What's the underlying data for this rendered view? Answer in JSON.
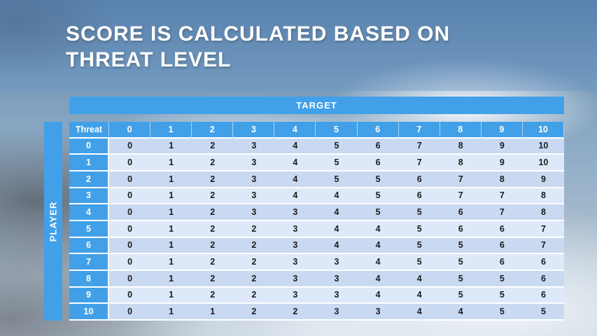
{
  "slide": {
    "title_line1": "SCORE IS CALCULATED BASED ON",
    "title_line2": "THREAT LEVEL"
  },
  "table": {
    "target_label": "TARGET",
    "player_label": "PLAYER",
    "corner_label": "Threat",
    "column_headers": [
      "0",
      "1",
      "2",
      "3",
      "4",
      "5",
      "6",
      "7",
      "8",
      "9",
      "10"
    ],
    "row_headers": [
      "0",
      "1",
      "2",
      "3",
      "4",
      "5",
      "6",
      "7",
      "8",
      "9",
      "10"
    ],
    "matrix": [
      [
        0,
        1,
        2,
        3,
        4,
        5,
        6,
        7,
        8,
        9,
        10
      ],
      [
        0,
        1,
        2,
        3,
        4,
        5,
        6,
        7,
        8,
        9,
        10
      ],
      [
        0,
        1,
        2,
        3,
        4,
        5,
        5,
        6,
        7,
        8,
        9
      ],
      [
        0,
        1,
        2,
        3,
        4,
        4,
        5,
        6,
        7,
        7,
        8
      ],
      [
        0,
        1,
        2,
        3,
        3,
        4,
        5,
        5,
        6,
        7,
        8
      ],
      [
        0,
        1,
        2,
        2,
        3,
        4,
        4,
        5,
        6,
        6,
        7
      ],
      [
        0,
        1,
        2,
        2,
        3,
        4,
        4,
        5,
        5,
        6,
        7
      ],
      [
        0,
        1,
        2,
        2,
        3,
        3,
        4,
        5,
        5,
        6,
        6
      ],
      [
        0,
        1,
        2,
        2,
        3,
        3,
        4,
        4,
        5,
        5,
        6
      ],
      [
        0,
        1,
        2,
        2,
        3,
        3,
        4,
        4,
        5,
        5,
        6
      ],
      [
        0,
        1,
        1,
        2,
        2,
        3,
        3,
        4,
        4,
        5,
        5
      ]
    ]
  },
  "colors": {
    "accent_blue": "#41a0e8",
    "band_row_dark": "#c9d9f1",
    "band_row_light": "#dde9f8",
    "cell_text": "#1d1d1d",
    "header_text": "#ffffff",
    "title_text": "#ffffff"
  }
}
